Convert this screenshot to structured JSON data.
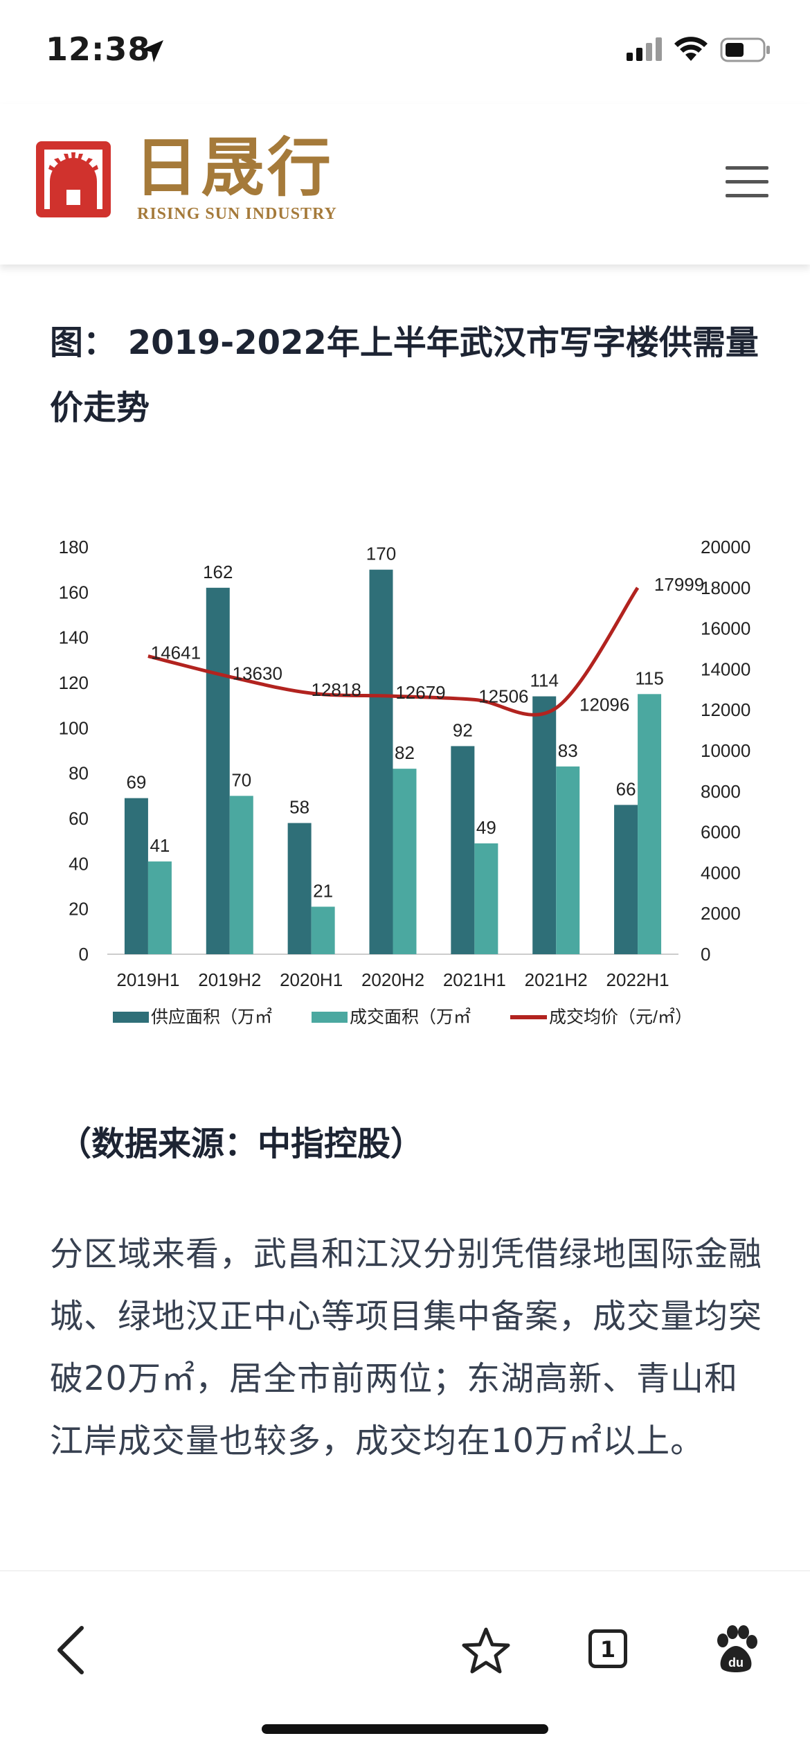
{
  "status": {
    "time": "12:38"
  },
  "brand": {
    "name_cn": "日晟行",
    "name_en": "RISING SUN INDUSTRY"
  },
  "figure": {
    "title": "图： 2019-2022年上半年武汉市写字楼供需量价走势"
  },
  "chart_data": {
    "type": "bar",
    "categories": [
      "2019H1",
      "2019H2",
      "2020H1",
      "2020H2",
      "2021H1",
      "2021H2",
      "2022H1"
    ],
    "series": [
      {
        "name": "供应面积（万㎡",
        "type": "bar",
        "axis": "left",
        "color": "#2f6f78",
        "values": [
          69,
          162,
          58,
          170,
          92,
          114,
          66
        ]
      },
      {
        "name": "成交面积（万㎡",
        "type": "bar",
        "axis": "left",
        "color": "#4ba8a0",
        "values": [
          41,
          70,
          21,
          82,
          49,
          83,
          115
        ]
      },
      {
        "name": "成交均价（元/㎡）",
        "type": "line",
        "axis": "right",
        "color": "#b2231f",
        "values": [
          14641,
          13630,
          12818,
          12679,
          12506,
          12096,
          17999
        ]
      }
    ],
    "y_left": {
      "min": 0,
      "max": 180,
      "ticks": [
        "0",
        "20",
        "40",
        "60",
        "80",
        "100",
        "120",
        "140",
        "160",
        "180"
      ]
    },
    "y_right": {
      "min": 0,
      "max": 20000,
      "ticks": [
        "0",
        "2000",
        "4000",
        "6000",
        "8000",
        "10000",
        "12000",
        "14000",
        "16000",
        "18000",
        "20000"
      ]
    },
    "legend_position": "bottom",
    "grid": false
  },
  "source_note": "（数据来源：中指控股）",
  "paragraph": "分区域来看，武昌和江汉分别凭借绿地国际金融城、绿地汉正中心等项目集中备案，成交量均突破20万㎡，居全市前两位；东湖高新、青山和江岸成交量也较多，成交均在10万㎡以上。",
  "toolbar": {
    "tab_count": "1"
  }
}
